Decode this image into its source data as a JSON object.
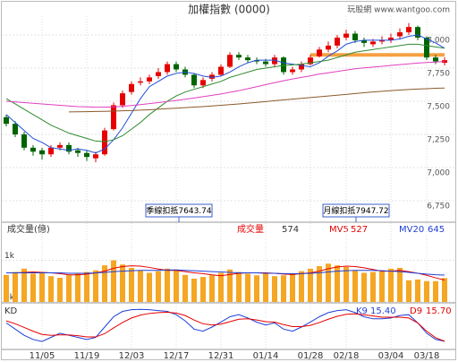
{
  "chart_data": {
    "type": "candlestick",
    "title": "加權指數 (0000)",
    "source": "玩股網 www.wantgoo.com",
    "categories": [
      null,
      null,
      null,
      null,
      "11/05",
      null,
      null,
      null,
      null,
      "11/19",
      null,
      null,
      null,
      null,
      "12/03",
      null,
      null,
      null,
      null,
      "12/17",
      null,
      null,
      null,
      null,
      "12/31",
      null,
      null,
      null,
      null,
      "01/14",
      null,
      null,
      null,
      null,
      "01/28",
      null,
      null,
      null,
      "02/18",
      null,
      null,
      null,
      null,
      "03/04",
      null,
      null,
      null,
      "03/18",
      null,
      null
    ],
    "open": [
      7380,
      7330,
      7250,
      7150,
      7130,
      7100,
      7150,
      7170,
      7130,
      7110,
      7070,
      7100,
      7290,
      7470,
      7570,
      7640,
      7650,
      7690,
      7720,
      7780,
      7740,
      7700,
      7620,
      7670,
      7700,
      7760,
      7850,
      7830,
      7810,
      7800,
      7780,
      7830,
      7720,
      7740,
      7780,
      7840,
      7890,
      7920,
      7980,
      8010,
      7960,
      7930,
      7950,
      7960,
      7990,
      8020,
      8060,
      7980,
      7830,
      7790
    ],
    "high": [
      7400,
      7350,
      7270,
      7170,
      7150,
      7170,
      7190,
      7190,
      7150,
      7130,
      7120,
      7300,
      7490,
      7580,
      7650,
      7680,
      7700,
      7750,
      7800,
      7800,
      7760,
      7710,
      7680,
      7720,
      7780,
      7870,
      7870,
      7850,
      7830,
      7820,
      7850,
      7840,
      7760,
      7800,
      7850,
      7910,
      7950,
      8000,
      8040,
      8030,
      7980,
      7970,
      7990,
      8010,
      8050,
      8090,
      8070,
      7990,
      7850,
      7830
    ],
    "low": [
      7310,
      7230,
      7130,
      7090,
      7060,
      7080,
      7130,
      7100,
      7080,
      7050,
      7040,
      7090,
      7280,
      7450,
      7550,
      7620,
      7630,
      7670,
      7700,
      7720,
      7680,
      7600,
      7600,
      7650,
      7690,
      7750,
      7810,
      7790,
      7780,
      7760,
      7760,
      7700,
      7700,
      7720,
      7770,
      7830,
      7870,
      7900,
      7960,
      7940,
      7910,
      7910,
      7930,
      7940,
      7970,
      8000,
      7960,
      7810,
      7780,
      7770
    ],
    "close": [
      7330,
      7250,
      7150,
      7120,
      7100,
      7150,
      7170,
      7120,
      7110,
      7080,
      7100,
      7280,
      7470,
      7560,
      7630,
      7650,
      7680,
      7720,
      7780,
      7740,
      7700,
      7620,
      7660,
      7700,
      7760,
      7850,
      7830,
      7810,
      7800,
      7780,
      7830,
      7720,
      7740,
      7780,
      7830,
      7890,
      7920,
      7980,
      8010,
      7960,
      7940,
      7950,
      7960,
      7980,
      8020,
      8060,
      7980,
      7830,
      7800,
      7810
    ],
    "up_color": "#e60000",
    "down_color": "#006400",
    "ylim": [
      6588,
      8142
    ],
    "yticks": [
      {
        "value": 6750,
        "label": "6,750"
      },
      {
        "value": 7000,
        "label": "7,000"
      },
      {
        "value": 7250,
        "label": "7,250"
      },
      {
        "value": 7500,
        "label": "7,500"
      },
      {
        "value": 7750,
        "label": "7,750"
      },
      {
        "value": 8000,
        "label": "8,000"
      }
    ],
    "grid": true,
    "overlays": [
      {
        "color": "#1f4fd8",
        "line_width": 1,
        "values": [
          7400,
          7340,
          7280,
          7220,
          7190,
          7150,
          7140,
          7130,
          7140,
          7130,
          7110,
          7140,
          7210,
          7300,
          7410,
          7520,
          7610,
          7650,
          7690,
          7710,
          7720,
          7710,
          7690,
          7680,
          7690,
          7720,
          7760,
          7790,
          7810,
          7810,
          7810,
          7790,
          7780,
          7770,
          7760,
          7790,
          7840,
          7880,
          7930,
          7950,
          7960,
          7960,
          7960,
          7960,
          7970,
          7990,
          8000,
          7970,
          7940,
          7900
        ]
      },
      {
        "color": "#2e8b2e",
        "line_width": 1,
        "values": [
          7520,
          7480,
          7440,
          7400,
          7360,
          7320,
          7290,
          7260,
          7240,
          7220,
          7200,
          7195,
          7210,
          7240,
          7290,
          7340,
          7400,
          7450,
          7500,
          7540,
          7570,
          7590,
          7610,
          7630,
          7650,
          7680,
          7700,
          7720,
          7740,
          7750,
          7760,
          7770,
          7775,
          7780,
          7790,
          7800,
          7810,
          7830,
          7850,
          7870,
          7880,
          7890,
          7900,
          7910,
          7920,
          7930,
          7930,
          7920,
          7910,
          7900
        ]
      },
      {
        "color": "#e040c0",
        "line_width": 1,
        "values": [
          7500,
          7495,
          7490,
          7485,
          7480,
          7475,
          7470,
          7465,
          7460,
          7458,
          7455,
          7455,
          7458,
          7462,
          7468,
          7475,
          7482,
          7490,
          7498,
          7506,
          7515,
          7525,
          7535,
          7545,
          7555,
          7568,
          7580,
          7595,
          7610,
          7625,
          7640,
          7655,
          7668,
          7680,
          7692,
          7705,
          7715,
          7725,
          7735,
          7745,
          7752,
          7758,
          7764,
          7770,
          7776,
          7782,
          7788,
          7792,
          7796,
          7800
        ]
      },
      {
        "color": "#8b5a2b",
        "line_width": 1,
        "values": [
          null,
          null,
          null,
          null,
          null,
          null,
          null,
          7420,
          7421,
          7422,
          7423,
          7424,
          7426,
          7428,
          7430,
          7433,
          7436,
          7440,
          7444,
          7448,
          7452,
          7456,
          7460,
          7465,
          7470,
          7475,
          7480,
          7486,
          7492,
          7498,
          7504,
          7510,
          7516,
          7522,
          7528,
          7534,
          7540,
          7546,
          7552,
          7558,
          7564,
          7570,
          7575,
          7580,
          7585,
          7589,
          7592,
          7595,
          7598,
          7600
        ]
      },
      {
        "color": "#f5a142",
        "line_width": 4,
        "values": [
          null,
          null,
          null,
          null,
          null,
          null,
          null,
          null,
          null,
          null,
          null,
          null,
          null,
          null,
          null,
          null,
          null,
          null,
          null,
          null,
          null,
          null,
          null,
          null,
          null,
          null,
          null,
          null,
          null,
          null,
          null,
          null,
          null,
          null,
          7850,
          7850,
          7850,
          7850,
          7850,
          7850,
          7850,
          7850,
          7850,
          7850,
          7850,
          7850,
          7850,
          7850,
          7850,
          7850
        ]
      }
    ],
    "annotations": [
      "季線扣抵7643.74",
      "月線扣抵7947.72"
    ],
    "volume": {
      "label": "成交量(億)",
      "title": "成交量",
      "color": "#f5a623",
      "values": [
        650,
        720,
        800,
        680,
        700,
        620,
        580,
        640,
        700,
        720,
        760,
        880,
        1000,
        900,
        820,
        760,
        700,
        740,
        800,
        780,
        650,
        560,
        600,
        640,
        700,
        780,
        720,
        680,
        640,
        700,
        620,
        640,
        680,
        740,
        800,
        860,
        920,
        880,
        840,
        760,
        700,
        720,
        760,
        800,
        820,
        520,
        540,
        500,
        500,
        574
      ],
      "ylim": [
        0,
        1270
      ],
      "yticks": [
        {
          "value": 1000,
          "label": "1k"
        },
        {
          "value": 0,
          "label": "0k"
        }
      ],
      "series": [
        {
          "name": "MV5",
          "color": "#e60000",
          "values": [
            700,
            700,
            710,
            720,
            710,
            700,
            680,
            650,
            650,
            670,
            700,
            740,
            810,
            850,
            870,
            860,
            830,
            790,
            760,
            760,
            730,
            700,
            680,
            650,
            630,
            660,
            690,
            700,
            700,
            700,
            690,
            670,
            660,
            680,
            700,
            740,
            800,
            840,
            860,
            850,
            820,
            780,
            740,
            740,
            760,
            730,
            690,
            640,
            580,
            527
          ]
        },
        {
          "name": "MV20",
          "color": "#1f3fd8",
          "values": [
            700,
            700,
            700,
            700,
            700,
            700,
            700,
            690,
            690,
            690,
            700,
            710,
            730,
            740,
            750,
            760,
            760,
            760,
            770,
            770,
            760,
            750,
            740,
            730,
            720,
            710,
            700,
            700,
            700,
            690,
            690,
            680,
            680,
            680,
            690,
            700,
            720,
            740,
            750,
            760,
            760,
            760,
            750,
            740,
            730,
            710,
            690,
            670,
            655,
            645
          ]
        }
      ]
    },
    "kd": {
      "label": "KD",
      "ylim": [
        0,
        100
      ],
      "series": [
        {
          "name": "K9",
          "color": "#1f3fd8",
          "last_label": "15.40",
          "values": [
            60,
            45,
            30,
            20,
            15,
            25,
            35,
            30,
            25,
            20,
            25,
            50,
            75,
            88,
            92,
            93,
            92,
            90,
            88,
            80,
            65,
            45,
            40,
            50,
            62,
            75,
            80,
            72,
            62,
            55,
            60,
            45,
            40,
            50,
            62,
            75,
            85,
            90,
            92,
            85,
            75,
            70,
            70,
            72,
            78,
            80,
            60,
            35,
            20,
            15.4
          ]
        },
        {
          "name": "D9",
          "color": "#e60000",
          "last_label": "15.70",
          "values": [
            65,
            58,
            49,
            40,
            32,
            30,
            31,
            31,
            29,
            26,
            26,
            34,
            48,
            61,
            72,
            79,
            83,
            85,
            86,
            84,
            78,
            67,
            58,
            55,
            57,
            63,
            69,
            70,
            67,
            63,
            62,
            56,
            51,
            51,
            54,
            61,
            69,
            76,
            81,
            82,
            80,
            77,
            74,
            74,
            74,
            72,
            60,
            40,
            24,
            15.7
          ]
        }
      ]
    }
  }
}
